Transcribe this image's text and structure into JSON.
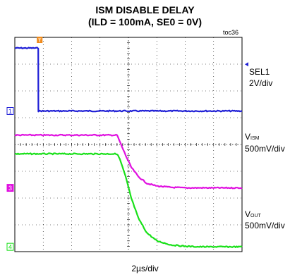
{
  "chart_data": {
    "type": "line",
    "title": "ISM DISABLE DELAY",
    "subtitle": "(ILD = 100mA, SE0 = 0V)",
    "figure_id": "toc36",
    "xlabel": "2µs/div",
    "time_per_div_us": 2,
    "divisions": {
      "x": 8,
      "y": 8
    },
    "trigger_marker": "T",
    "grid": true,
    "series": [
      {
        "channel": "1",
        "name": "SEL1",
        "scale": "2V/div",
        "color": "#1f1fd6",
        "x": [
          0.0,
          1.65,
          1.66,
          2.7,
          16.0
        ],
        "y": [
          7.6,
          7.6,
          5.25,
          5.25,
          5.25
        ]
      },
      {
        "channel": "3",
        "name_main": "V",
        "name_sub": "ISM",
        "scale": "500mV/div",
        "color": "#e010e0",
        "x": [
          0.0,
          7.2,
          7.4,
          7.8,
          8.2,
          8.7,
          9.3,
          10.0,
          11.0,
          12.0,
          16.0
        ],
        "y": [
          4.35,
          4.35,
          4.1,
          3.6,
          3.15,
          2.8,
          2.55,
          2.45,
          2.4,
          2.38,
          2.38
        ]
      },
      {
        "channel": "4",
        "name_main": "V",
        "name_sub": "OUT",
        "scale": "500mV/div",
        "color": "#19e019",
        "x": [
          0.0,
          7.2,
          7.4,
          7.8,
          8.2,
          8.7,
          9.3,
          10.0,
          11.0,
          12.0,
          13.0,
          16.0
        ],
        "y": [
          3.65,
          3.65,
          3.45,
          2.8,
          2.0,
          1.25,
          0.7,
          0.4,
          0.25,
          0.2,
          0.18,
          0.18
        ]
      }
    ]
  }
}
